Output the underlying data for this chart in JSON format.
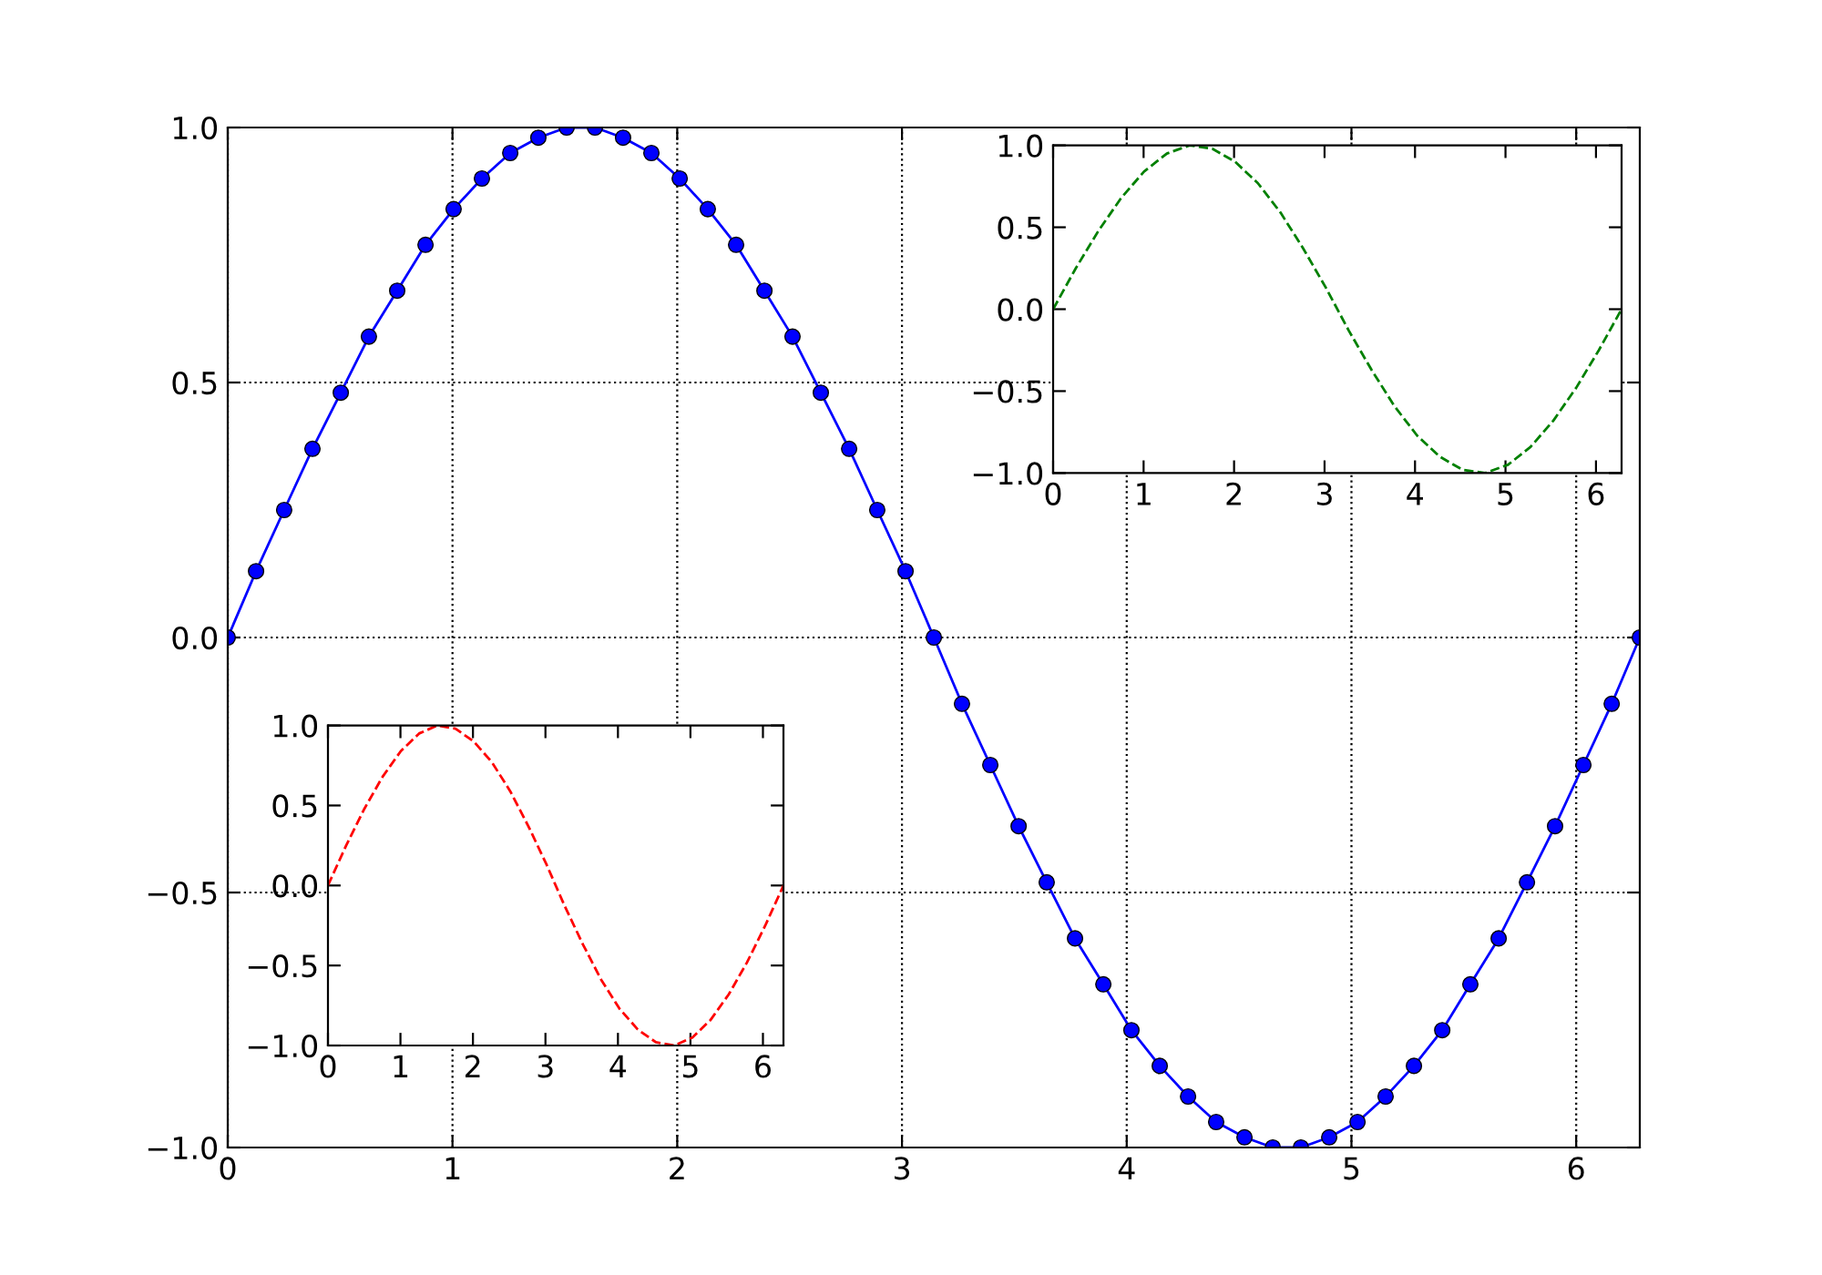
{
  "chart_data": [
    {
      "type": "line",
      "x": [
        0,
        0.126,
        0.251,
        0.377,
        0.503,
        0.628,
        0.754,
        0.88,
        1.005,
        1.131,
        1.257,
        1.382,
        1.508,
        1.634,
        1.759,
        1.885,
        2.011,
        2.136,
        2.262,
        2.388,
        2.513,
        2.639,
        2.765,
        2.89,
        3.016,
        3.142,
        3.267,
        3.393,
        3.519,
        3.644,
        3.77,
        3.896,
        4.021,
        4.147,
        4.273,
        4.398,
        4.524,
        4.65,
        4.775,
        4.901,
        5.027,
        5.152,
        5.278,
        5.404,
        5.529,
        5.655,
        5.781,
        5.906,
        6.032,
        6.158,
        6.283
      ],
      "series": [
        {
          "color": "#0000ff",
          "values": [
            0,
            0.13,
            0.25,
            0.37,
            0.48,
            0.59,
            0.68,
            0.77,
            0.84,
            0.9,
            0.95,
            0.98,
            1.0,
            1.0,
            0.98,
            0.95,
            0.9,
            0.84,
            0.77,
            0.68,
            0.59,
            0.48,
            0.37,
            0.25,
            0.13,
            0,
            -0.13,
            -0.25,
            -0.37,
            -0.48,
            -0.59,
            -0.68,
            -0.77,
            -0.84,
            -0.9,
            -0.95,
            -0.98,
            -1.0,
            -1.0,
            -0.98,
            -0.95,
            -0.9,
            -0.84,
            -0.77,
            -0.68,
            -0.59,
            -0.48,
            -0.37,
            -0.25,
            -0.13,
            0
          ]
        }
      ],
      "xlim": [
        0,
        6.283
      ],
      "ylim": [
        -1,
        1
      ],
      "xticks": [
        0,
        1,
        2,
        3,
        4,
        5,
        6
      ],
      "yticks": [
        {
          "value": -1,
          "label": "−1.0"
        },
        {
          "value": -0.5,
          "label": "−0.5"
        },
        {
          "value": 0,
          "label": "0.0"
        },
        {
          "value": 0.5,
          "label": "0.5"
        },
        {
          "value": 1,
          "label": "1.0"
        }
      ],
      "grid": true,
      "marker": "circle",
      "line_style": "solid"
    },
    {
      "type": "line",
      "x": [
        0,
        0.251,
        0.503,
        0.754,
        1.005,
        1.257,
        1.508,
        1.759,
        2.011,
        2.262,
        2.513,
        2.765,
        3.016,
        3.267,
        3.519,
        3.77,
        4.021,
        4.273,
        4.524,
        4.775,
        5.027,
        5.278,
        5.529,
        5.781,
        6.032,
        6.283
      ],
      "series": [
        {
          "color": "#008000",
          "values": [
            0,
            0.25,
            0.48,
            0.68,
            0.84,
            0.95,
            1.0,
            0.98,
            0.9,
            0.77,
            0.59,
            0.37,
            0.13,
            -0.13,
            -0.37,
            -0.59,
            -0.77,
            -0.9,
            -0.98,
            -1.0,
            -0.95,
            -0.84,
            -0.68,
            -0.48,
            -0.25,
            0
          ]
        }
      ],
      "xlim": [
        0,
        6.283
      ],
      "ylim": [
        -1,
        1
      ],
      "xticks": [
        0,
        1,
        2,
        3,
        4,
        5,
        6
      ],
      "yticks": [
        {
          "value": -1,
          "label": "−1.0"
        },
        {
          "value": -0.5,
          "label": "−0.5"
        },
        {
          "value": 0,
          "label": "0.0"
        },
        {
          "value": 0.5,
          "label": "0.5"
        },
        {
          "value": 1,
          "label": "1.0"
        }
      ],
      "line_style": "dashed"
    },
    {
      "type": "line",
      "x": [
        0,
        0.251,
        0.503,
        0.754,
        1.005,
        1.257,
        1.508,
        1.759,
        2.011,
        2.262,
        2.513,
        2.765,
        3.016,
        3.267,
        3.519,
        3.77,
        4.021,
        4.273,
        4.524,
        4.775,
        5.027,
        5.278,
        5.529,
        5.781,
        6.032,
        6.283
      ],
      "series": [
        {
          "color": "#ff0000",
          "values": [
            0,
            0.25,
            0.48,
            0.68,
            0.84,
            0.95,
            1.0,
            0.98,
            0.9,
            0.77,
            0.59,
            0.37,
            0.13,
            -0.13,
            -0.37,
            -0.59,
            -0.77,
            -0.9,
            -0.98,
            -1.0,
            -0.95,
            -0.84,
            -0.68,
            -0.48,
            -0.25,
            0
          ]
        }
      ],
      "xlim": [
        0,
        6.283
      ],
      "ylim": [
        -1,
        1
      ],
      "xticks": [
        0,
        1,
        2,
        3,
        4,
        5,
        6
      ],
      "yticks": [
        {
          "value": -1,
          "label": "−1.0"
        },
        {
          "value": -0.5,
          "label": "−0.5"
        },
        {
          "value": 0,
          "label": "0.0"
        },
        {
          "value": 0.5,
          "label": "0.5"
        },
        {
          "value": 1,
          "label": "1.0"
        }
      ],
      "line_style": "dashed"
    }
  ]
}
